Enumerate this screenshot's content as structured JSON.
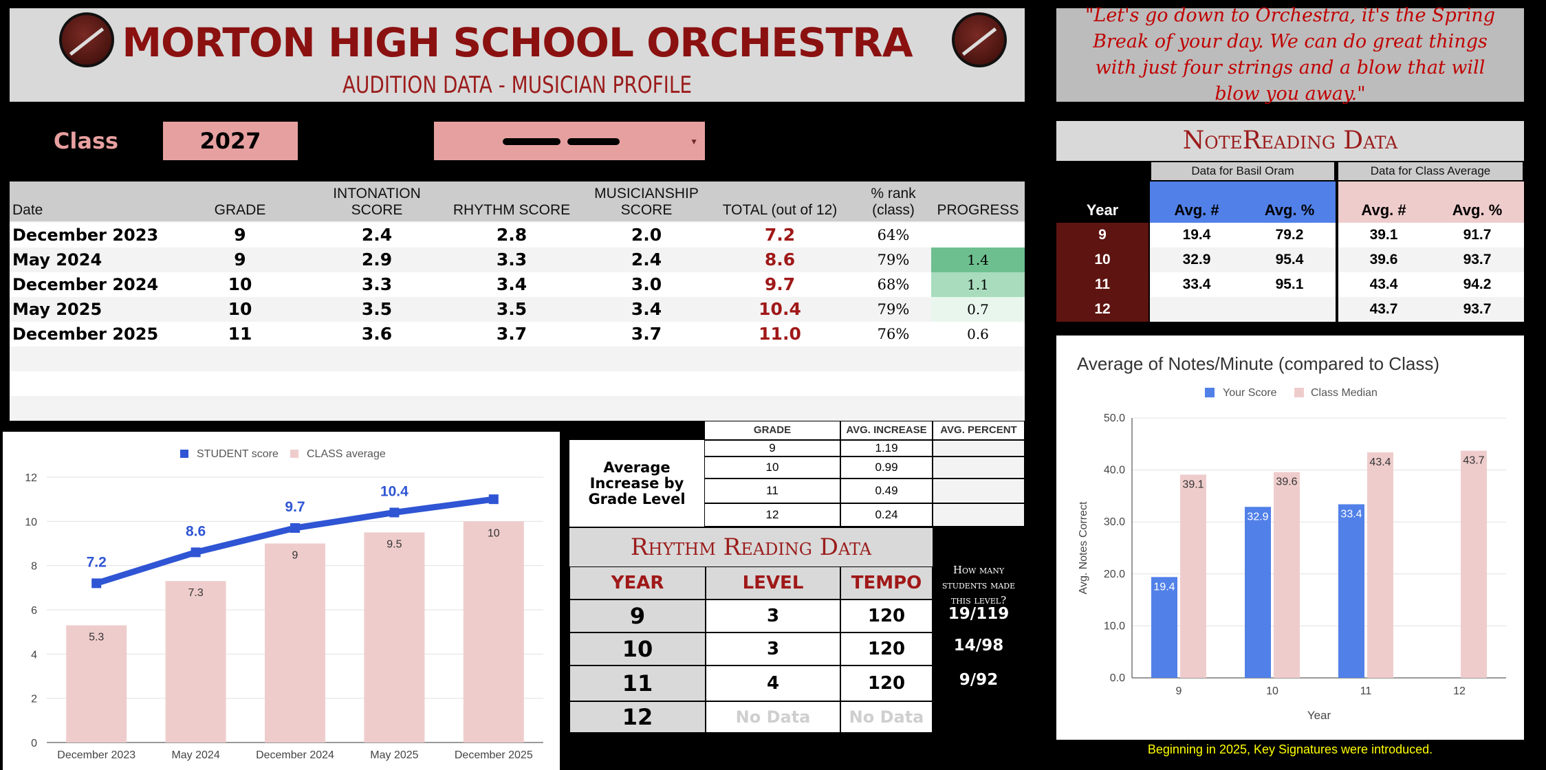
{
  "header": {
    "title": "MORTON HIGH SCHOOL ORCHESTRA",
    "subtitle": "AUDITION DATA - MUSICIAN PROFILE"
  },
  "quote": "\"Let's go down to Orchestra, it's the Spring Break of your day.  We can do great things with just four strings and a blow that will blow you away.\"",
  "class_selector": {
    "label": "Class",
    "value": "2027"
  },
  "audition_table": {
    "headers": [
      "Date",
      "GRADE",
      "INTONATION SCORE",
      "RHYTHM SCORE",
      "MUSICIANSHIP SCORE",
      "TOTAL (out of 12)",
      "% rank (class)",
      "PROGRESS"
    ],
    "rows": [
      {
        "date": "December 2023",
        "grade": "9",
        "intonation": "2.4",
        "rhythm": "2.8",
        "musicianship": "2.0",
        "total": "7.2",
        "rank": "64%",
        "progress": ""
      },
      {
        "date": "May 2024",
        "grade": "9",
        "intonation": "2.9",
        "rhythm": "3.3",
        "musicianship": "2.4",
        "total": "8.6",
        "rank": "79%",
        "progress": "1.4"
      },
      {
        "date": "December 2024",
        "grade": "10",
        "intonation": "3.3",
        "rhythm": "3.4",
        "musicianship": "3.0",
        "total": "9.7",
        "rank": "68%",
        "progress": "1.1"
      },
      {
        "date": "May 2025",
        "grade": "10",
        "intonation": "3.5",
        "rhythm": "3.5",
        "musicianship": "3.4",
        "total": "10.4",
        "rank": "79%",
        "progress": "0.7"
      },
      {
        "date": "December 2025",
        "grade": "11",
        "intonation": "3.6",
        "rhythm": "3.7",
        "musicianship": "3.7",
        "total": "11.0",
        "rank": "76%",
        "progress": "0.6"
      }
    ],
    "progress_colors": [
      "",
      "#6dbf8f",
      "#a8dcbd",
      "#e9f6ee",
      "#ffffff"
    ]
  },
  "avg_increase": {
    "label": "Average Increase by Grade Level",
    "headers": [
      "GRADE",
      "AVG. INCREASE",
      "AVG. PERCENT"
    ],
    "rows": [
      {
        "grade": "9",
        "increase": "1.19",
        "percent": ""
      },
      {
        "grade": "10",
        "increase": "0.99",
        "percent": ""
      },
      {
        "grade": "11",
        "increase": "0.49",
        "percent": ""
      },
      {
        "grade": "12",
        "increase": "0.24",
        "percent": ""
      }
    ]
  },
  "rhythm_reading": {
    "title": "Rhythm Reading Data",
    "headers": [
      "YEAR",
      "LEVEL",
      "TEMPO"
    ],
    "rows": [
      {
        "year": "9",
        "level": "3",
        "tempo": "120",
        "made": "19/119"
      },
      {
        "year": "10",
        "level": "3",
        "tempo": "120",
        "made": "14/98"
      },
      {
        "year": "11",
        "level": "4",
        "tempo": "120",
        "made": "9/92"
      },
      {
        "year": "12",
        "level": "No Data",
        "tempo": "No Data",
        "made": ""
      }
    ],
    "how_many_label": "How many students made this level?"
  },
  "note_reading": {
    "title": "NoteReading Data",
    "group_student": "Data for Basil Oram",
    "group_class": "Data for Class Average",
    "headers": [
      "Year",
      "Avg. #",
      "Avg. %",
      "Avg. #",
      "Avg. %"
    ],
    "rows": [
      {
        "year": "9",
        "s_num": "19.4",
        "s_pct": "79.2",
        "c_num": "39.1",
        "c_pct": "91.7"
      },
      {
        "year": "10",
        "s_num": "32.9",
        "s_pct": "95.4",
        "c_num": "39.6",
        "c_pct": "93.7"
      },
      {
        "year": "11",
        "s_num": "33.4",
        "s_pct": "95.1",
        "c_num": "43.4",
        "c_pct": "94.2"
      },
      {
        "year": "12",
        "s_num": "",
        "s_pct": "",
        "c_num": "43.7",
        "c_pct": "93.7"
      }
    ]
  },
  "footnote": "Beginning in 2025, Key Signatures were introduced.",
  "chart_data": [
    {
      "type": "bar",
      "categories": [
        "December 2023",
        "May 2024",
        "December 2024",
        "May 2025",
        "December 2025"
      ],
      "series": [
        {
          "name": "STUDENT score",
          "kind": "line",
          "values": [
            7.2,
            8.6,
            9.7,
            10.4,
            11.0
          ],
          "labels": [
            "7.2",
            "8.6",
            "9.7",
            "10.4",
            ""
          ],
          "color": "#2f55d4"
        },
        {
          "name": "CLASS average",
          "kind": "bar",
          "values": [
            5.3,
            7.3,
            9,
            9.5,
            10
          ],
          "labels": [
            "5.3",
            "7.3",
            "9",
            "9.5",
            "10"
          ],
          "color": "#efcccc"
        }
      ],
      "yticks": [
        "0",
        "2",
        "4",
        "6",
        "8",
        "10",
        "12"
      ],
      "ylim": [
        0,
        12
      ],
      "legend": "top"
    },
    {
      "type": "bar",
      "title": "Average of Notes/Minute (compared to Class)",
      "categories": [
        "9",
        "10",
        "11",
        "12"
      ],
      "series": [
        {
          "name": "Your Score",
          "values": [
            19.4,
            32.9,
            33.4,
            null
          ],
          "labels": [
            "19.4",
            "32.9",
            "33.4",
            ""
          ],
          "color": "#5180e8"
        },
        {
          "name": "Class Median",
          "values": [
            39.1,
            39.6,
            43.4,
            43.7
          ],
          "labels": [
            "39.1",
            "39.6",
            "43.4",
            "43.7"
          ],
          "color": "#efcccc"
        }
      ],
      "yticks": [
        "0.0",
        "10.0",
        "20.0",
        "30.0",
        "40.0",
        "50.0"
      ],
      "ylim": [
        0,
        50
      ],
      "xlabel": "Year",
      "ylabel": "Avg. Notes Correct",
      "legend": "top"
    }
  ]
}
